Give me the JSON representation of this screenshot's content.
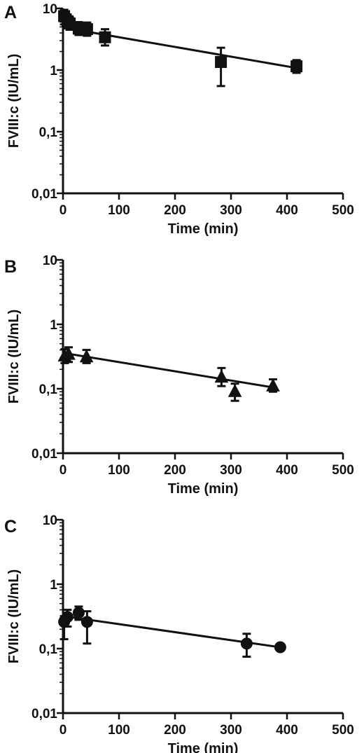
{
  "chart_data": [
    {
      "panel_label": "A",
      "type": "scatter",
      "marker": "square",
      "xlabel": "Time (min)",
      "ylabel": "FVIII:c (IU/mL)",
      "xlim": [
        0,
        500
      ],
      "ylim": [
        0.01,
        10
      ],
      "yscale": "log",
      "x_ticks": [
        "0",
        "100",
        "200",
        "300",
        "400",
        "500"
      ],
      "y_ticks": [
        "0,01",
        "0,1",
        "1",
        "10"
      ],
      "points": [
        {
          "x": 2,
          "y": 7.5,
          "err_low": 5.5,
          "err_high": 9.5
        },
        {
          "x": 8,
          "y": 6.2,
          "err_low": 4.8,
          "err_high": 8.0
        },
        {
          "x": 12,
          "y": 5.7,
          "err_low": 4.5,
          "err_high": 7.2
        },
        {
          "x": 28,
          "y": 4.7,
          "err_low": 3.7,
          "err_high": 6.0
        },
        {
          "x": 43,
          "y": 4.6,
          "err_low": 3.6,
          "err_high": 5.9
        },
        {
          "x": 75,
          "y": 3.4,
          "err_low": 2.5,
          "err_high": 4.6
        },
        {
          "x": 282,
          "y": 1.35,
          "err_low": 0.55,
          "err_high": 2.3
        },
        {
          "x": 417,
          "y": 1.15,
          "err_low": 0.9,
          "err_high": 1.45
        }
      ],
      "fit_line": {
        "x": [
          0,
          417
        ],
        "y": [
          4.9,
          1.08
        ]
      }
    },
    {
      "panel_label": "B",
      "type": "scatter",
      "marker": "triangle",
      "xlabel": "Time (min)",
      "ylabel": "FVIII:c (IU/mL)",
      "xlim": [
        0,
        500
      ],
      "ylim": [
        0.01,
        10
      ],
      "yscale": "log",
      "x_ticks": [
        "0",
        "100",
        "200",
        "300",
        "400",
        "500"
      ],
      "y_ticks": [
        "0,01",
        "0,1",
        "1",
        "10"
      ],
      "points": [
        {
          "x": 3,
          "y": 0.32,
          "err_low": 0.25,
          "err_high": 0.41
        },
        {
          "x": 10,
          "y": 0.34,
          "err_low": 0.26,
          "err_high": 0.44
        },
        {
          "x": 42,
          "y": 0.31,
          "err_low": 0.25,
          "err_high": 0.4
        },
        {
          "x": 283,
          "y": 0.15,
          "err_low": 0.11,
          "err_high": 0.21
        },
        {
          "x": 307,
          "y": 0.09,
          "err_low": 0.065,
          "err_high": 0.12
        },
        {
          "x": 375,
          "y": 0.11,
          "err_low": 0.09,
          "err_high": 0.14
        }
      ],
      "fit_line": {
        "x": [
          0,
          375
        ],
        "y": [
          0.36,
          0.105
        ]
      }
    },
    {
      "panel_label": "C",
      "type": "scatter",
      "marker": "circle",
      "xlabel": "Time (min)",
      "ylabel": "FVIII:c (IU/mL)",
      "xlim": [
        0,
        500
      ],
      "ylim": [
        0.01,
        10
      ],
      "yscale": "log",
      "x_ticks": [
        "0",
        "100",
        "200",
        "300",
        "400",
        "500"
      ],
      "y_ticks": [
        "0,01",
        "0,1",
        "1",
        "10"
      ],
      "points": [
        {
          "x": 2,
          "y": 0.26,
          "err_low": 0.14,
          "err_high": 0.32
        },
        {
          "x": 8,
          "y": 0.31,
          "err_low": 0.22,
          "err_high": 0.4
        },
        {
          "x": 28,
          "y": 0.36,
          "err_low": 0.28,
          "err_high": 0.45
        },
        {
          "x": 43,
          "y": 0.26,
          "err_low": 0.12,
          "err_high": 0.38
        },
        {
          "x": 328,
          "y": 0.12,
          "err_low": 0.075,
          "err_high": 0.17
        },
        {
          "x": 388,
          "y": 0.105,
          "err_low": 0.105,
          "err_high": 0.105
        }
      ],
      "fit_line": {
        "x": [
          0,
          388
        ],
        "y": [
          0.32,
          0.105
        ]
      }
    }
  ]
}
